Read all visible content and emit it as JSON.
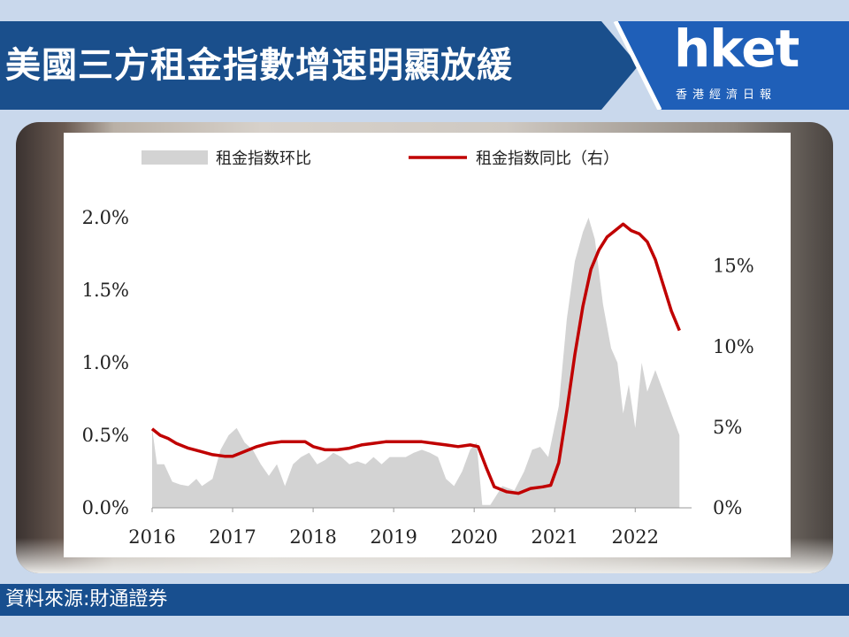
{
  "header": {
    "title": "美國三方租金指數增速明顯放緩",
    "logo_word": "hket",
    "logo_sub": "香港經濟日報"
  },
  "footer": {
    "source": "資料來源:財通證券"
  },
  "colors": {
    "banner": "#1a4f8c",
    "logo_bg": "#1f5fb8",
    "source_bar": "#184f8f",
    "area_fill": "#d3d3d3",
    "line": "#c00000",
    "page_bg": "#c9d8ec"
  },
  "chart_data": {
    "type": "area+line",
    "legend": {
      "area_label": "租金指数环比",
      "line_label": "租金指数同比（右）",
      "placement": "top"
    },
    "x_ticks": [
      "2016",
      "2017",
      "2018",
      "2019",
      "2020",
      "2021",
      "2022"
    ],
    "x_range": [
      2016,
      2022.7
    ],
    "left_axis": {
      "ticks": [
        "0.0%",
        "0.5%",
        "1.0%",
        "1.5%",
        "2.0%"
      ],
      "range": [
        0,
        2.0
      ],
      "unit": "%"
    },
    "right_axis": {
      "ticks": [
        "0%",
        "5%",
        "10%",
        "15%"
      ],
      "range": [
        0,
        18
      ],
      "unit": "%"
    },
    "series": [
      {
        "name": "租金指数环比",
        "kind": "area",
        "axis": "left",
        "points": [
          [
            2016.0,
            0.55
          ],
          [
            2016.06,
            0.3
          ],
          [
            2016.15,
            0.3
          ],
          [
            2016.25,
            0.18
          ],
          [
            2016.35,
            0.16
          ],
          [
            2016.45,
            0.15
          ],
          [
            2016.55,
            0.2
          ],
          [
            2016.62,
            0.15
          ],
          [
            2016.75,
            0.2
          ],
          [
            2016.85,
            0.4
          ],
          [
            2016.95,
            0.5
          ],
          [
            2017.05,
            0.55
          ],
          [
            2017.15,
            0.45
          ],
          [
            2017.25,
            0.4
          ],
          [
            2017.35,
            0.3
          ],
          [
            2017.45,
            0.22
          ],
          [
            2017.55,
            0.3
          ],
          [
            2017.65,
            0.15
          ],
          [
            2017.75,
            0.3
          ],
          [
            2017.85,
            0.35
          ],
          [
            2017.95,
            0.38
          ],
          [
            2018.05,
            0.3
          ],
          [
            2018.15,
            0.33
          ],
          [
            2018.25,
            0.38
          ],
          [
            2018.35,
            0.35
          ],
          [
            2018.45,
            0.3
          ],
          [
            2018.55,
            0.32
          ],
          [
            2018.65,
            0.3
          ],
          [
            2018.75,
            0.35
          ],
          [
            2018.85,
            0.3
          ],
          [
            2018.95,
            0.35
          ],
          [
            2019.05,
            0.35
          ],
          [
            2019.15,
            0.35
          ],
          [
            2019.25,
            0.38
          ],
          [
            2019.35,
            0.4
          ],
          [
            2019.45,
            0.38
          ],
          [
            2019.55,
            0.35
          ],
          [
            2019.65,
            0.2
          ],
          [
            2019.75,
            0.15
          ],
          [
            2019.85,
            0.25
          ],
          [
            2019.95,
            0.4
          ],
          [
            2020.03,
            0.45
          ],
          [
            2020.1,
            0.02
          ],
          [
            2020.2,
            0.02
          ],
          [
            2020.35,
            0.15
          ],
          [
            2020.5,
            0.12
          ],
          [
            2020.62,
            0.25
          ],
          [
            2020.72,
            0.4
          ],
          [
            2020.82,
            0.42
          ],
          [
            2020.92,
            0.35
          ],
          [
            2021.05,
            0.7
          ],
          [
            2021.15,
            1.3
          ],
          [
            2021.25,
            1.7
          ],
          [
            2021.35,
            1.9
          ],
          [
            2021.42,
            2.0
          ],
          [
            2021.5,
            1.85
          ],
          [
            2021.6,
            1.4
          ],
          [
            2021.7,
            1.1
          ],
          [
            2021.78,
            1.0
          ],
          [
            2021.85,
            0.65
          ],
          [
            2021.92,
            0.85
          ],
          [
            2022.0,
            0.55
          ],
          [
            2022.08,
            1.0
          ],
          [
            2022.15,
            0.8
          ],
          [
            2022.25,
            0.95
          ],
          [
            2022.35,
            0.8
          ],
          [
            2022.45,
            0.65
          ],
          [
            2022.55,
            0.5
          ]
        ]
      },
      {
        "name": "租金指数同比（右）",
        "kind": "line",
        "axis": "right",
        "points": [
          [
            2016.0,
            4.9
          ],
          [
            2016.1,
            4.5
          ],
          [
            2016.2,
            4.3
          ],
          [
            2016.3,
            4.0
          ],
          [
            2016.45,
            3.7
          ],
          [
            2016.6,
            3.5
          ],
          [
            2016.75,
            3.3
          ],
          [
            2016.9,
            3.2
          ],
          [
            2017.0,
            3.2
          ],
          [
            2017.15,
            3.5
          ],
          [
            2017.3,
            3.8
          ],
          [
            2017.45,
            4.0
          ],
          [
            2017.6,
            4.1
          ],
          [
            2017.75,
            4.1
          ],
          [
            2017.9,
            4.1
          ],
          [
            2018.0,
            3.8
          ],
          [
            2018.15,
            3.6
          ],
          [
            2018.3,
            3.6
          ],
          [
            2018.45,
            3.7
          ],
          [
            2018.6,
            3.9
          ],
          [
            2018.75,
            4.0
          ],
          [
            2018.9,
            4.1
          ],
          [
            2019.05,
            4.1
          ],
          [
            2019.2,
            4.1
          ],
          [
            2019.35,
            4.1
          ],
          [
            2019.5,
            4.0
          ],
          [
            2019.65,
            3.9
          ],
          [
            2019.8,
            3.8
          ],
          [
            2019.95,
            3.9
          ],
          [
            2020.05,
            3.8
          ],
          [
            2020.15,
            2.5
          ],
          [
            2020.25,
            1.3
          ],
          [
            2020.4,
            1.0
          ],
          [
            2020.55,
            0.9
          ],
          [
            2020.7,
            1.2
          ],
          [
            2020.85,
            1.3
          ],
          [
            2020.95,
            1.4
          ],
          [
            2021.05,
            2.8
          ],
          [
            2021.15,
            6.0
          ],
          [
            2021.25,
            9.5
          ],
          [
            2021.35,
            12.5
          ],
          [
            2021.45,
            14.8
          ],
          [
            2021.55,
            16.0
          ],
          [
            2021.65,
            16.8
          ],
          [
            2021.75,
            17.2
          ],
          [
            2021.85,
            17.6
          ],
          [
            2021.95,
            17.2
          ],
          [
            2022.05,
            17.0
          ],
          [
            2022.15,
            16.5
          ],
          [
            2022.25,
            15.4
          ],
          [
            2022.35,
            13.8
          ],
          [
            2022.45,
            12.2
          ],
          [
            2022.55,
            11.0
          ]
        ]
      }
    ]
  }
}
